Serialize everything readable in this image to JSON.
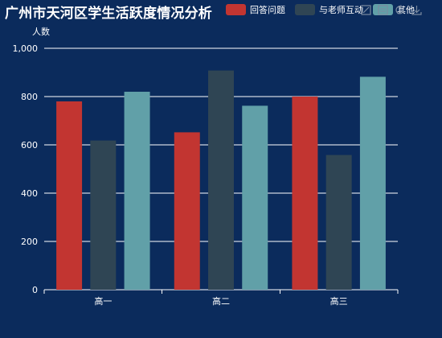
{
  "title": "广州市天河区学生活跃度情况分析",
  "legend": {
    "items": [
      {
        "label": "回答问题",
        "color": "#c23531"
      },
      {
        "label": "与老师互动",
        "color": "#2f4554"
      },
      {
        "label": "其他",
        "color": "#61a0a8"
      }
    ]
  },
  "toolbox": {
    "icons": [
      "mark-icon",
      "data-view-icon",
      "restore-icon",
      "save-image-icon"
    ]
  },
  "colors": {
    "background": "#0b2b5c",
    "axis": "#ffffff",
    "toolbox": "#7a8aa0"
  },
  "chart_data": {
    "type": "bar",
    "title": "广州市天河区学生活跃度情况分析",
    "xlabel": "",
    "ylabel": "人数",
    "ylim": [
      0,
      1000
    ],
    "yticks": [
      0,
      200,
      400,
      600,
      800,
      1000
    ],
    "ytick_labels": [
      "0",
      "200",
      "400",
      "600",
      "800",
      "1,000"
    ],
    "grid": true,
    "legend_position": "top",
    "categories": [
      "高一",
      "高二",
      "高三"
    ],
    "series": [
      {
        "name": "回答问题",
        "color": "#c23531",
        "values": [
          780,
          652,
          800
        ]
      },
      {
        "name": "与老师互动",
        "color": "#2f4554",
        "values": [
          618,
          908,
          558
        ]
      },
      {
        "name": "其他",
        "color": "#61a0a8",
        "values": [
          820,
          762,
          882
        ]
      }
    ]
  }
}
